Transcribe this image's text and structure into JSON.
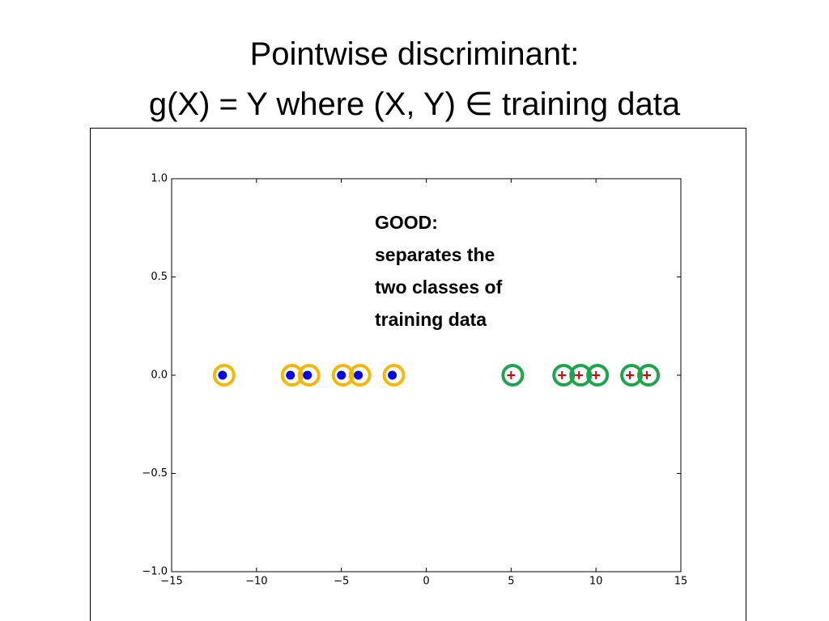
{
  "title": [
    "Pointwise discriminant:",
    "g(X) = Y where (X, Y) ∈ training data"
  ],
  "chart_data": {
    "type": "scatter",
    "xlim": [
      -15,
      15
    ],
    "ylim": [
      -1,
      1
    ],
    "xticks": [
      {
        "value": -15,
        "label": "−15"
      },
      {
        "value": -10,
        "label": "−10"
      },
      {
        "value": -5,
        "label": "−5"
      },
      0,
      5,
      10,
      15
    ],
    "yticks": [
      {
        "value": -1,
        "label": "−1.0"
      },
      {
        "value": -0.5,
        "label": "−0.5"
      },
      {
        "value": 0,
        "label": "0.0"
      },
      {
        "value": 0.5,
        "label": "0.5"
      },
      {
        "value": 1,
        "label": "1.0"
      }
    ],
    "annotation": [
      "GOOD:",
      "separates the",
      "two classes of",
      "training data"
    ],
    "series": [
      {
        "color": "#0000ff",
        "marker": "dot",
        "ring_color": "#f5b800",
        "x": [
          -12,
          -8,
          -7,
          -5,
          -4,
          -2
        ],
        "values": [
          0,
          0,
          0,
          0,
          0,
          0
        ]
      },
      {
        "color": "#e00000",
        "marker": "plus",
        "ring_color": "#1aa64a",
        "x": [
          5,
          8,
          9,
          10,
          12,
          13
        ],
        "values": [
          0,
          0,
          0,
          0,
          0,
          0
        ]
      }
    ]
  }
}
